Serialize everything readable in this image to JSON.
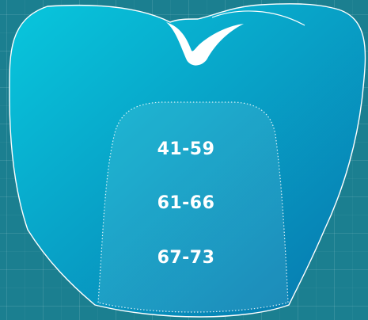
{
  "ranges": [
    {
      "label": "41-59"
    },
    {
      "label": "61-66"
    },
    {
      "label": "67-73"
    }
  ],
  "colors": {
    "background": "#1b7f90",
    "tooth_gradient_start": "#08c7dd",
    "tooth_gradient_end": "#0776ad",
    "outline": "#ffffff",
    "text": "#ffffff"
  },
  "icons": {
    "tooth": "tooth-icon",
    "checkmark": "checkmark-icon"
  },
  "background_grid": true
}
